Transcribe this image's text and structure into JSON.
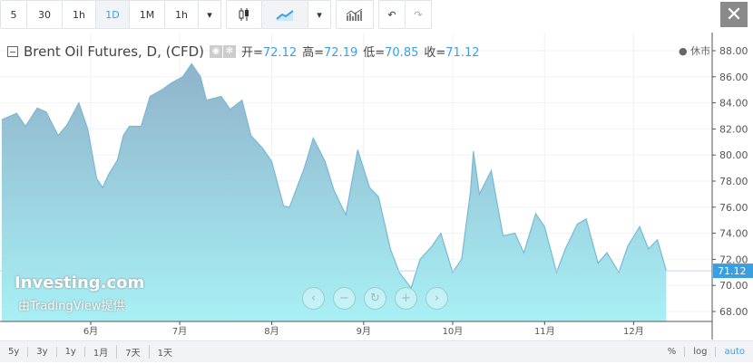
{
  "toolbar": {
    "intervals": [
      "5",
      "30",
      "1h",
      "1D",
      "1M",
      "1h"
    ],
    "selected": "1D",
    "chart_types": [
      "candlestick-icon",
      "area-chart-icon"
    ],
    "indicator_icon": "indicators-icon",
    "undo_icon": "undo-icon",
    "redo_icon": "redo-icon",
    "close_label": "✕"
  },
  "legend": {
    "title": "Brent Oil Futures, D, (CFD)",
    "open_label": "开=",
    "open": "72.12",
    "high_label": "高=",
    "high": "72.19",
    "low_label": "低=",
    "low": "70.85",
    "close_label": "收=",
    "close": "71.12",
    "status": "● 休市"
  },
  "watermark": {
    "brand": "Investing.com",
    "provider": "由TradingView提供"
  },
  "bottom": {
    "ranges": [
      "5y",
      "3y",
      "1y",
      "1月",
      "7天",
      "1天"
    ],
    "options": [
      "%",
      "log",
      "auto"
    ],
    "active_option": "auto"
  },
  "colors": {
    "accent": "#3a9fe0",
    "area_top": "#8fb3c9",
    "area_bottom": "#a8f0f5",
    "line": "#7ab8d8"
  },
  "chart_data": {
    "type": "area",
    "ylim": [
      67,
      89
    ],
    "yticks": [
      "68.00",
      "70.00",
      "72.00",
      "74.00",
      "76.00",
      "78.00",
      "80.00",
      "82.00",
      "84.00",
      "86.00",
      "88.00"
    ],
    "xticks": [
      {
        "label": "6月",
        "date": "06-01"
      },
      {
        "label": "7月",
        "date": "07-01"
      },
      {
        "label": "8月",
        "date": "08-01"
      },
      {
        "label": "9月",
        "date": "09-01"
      },
      {
        "label": "10月",
        "date": "10-01"
      },
      {
        "label": "11月",
        "date": "11-01"
      },
      {
        "label": "12月",
        "date": "12-01"
      }
    ],
    "last_price": "71.12",
    "points": [
      [
        "05-02",
        82.7
      ],
      [
        "05-07",
        83.2
      ],
      [
        "05-10",
        82.2
      ],
      [
        "05-14",
        83.6
      ],
      [
        "05-17",
        83.3
      ],
      [
        "05-21",
        81.5
      ],
      [
        "05-24",
        82.3
      ],
      [
        "05-28",
        84.0
      ],
      [
        "05-31",
        82.0
      ],
      [
        "06-03",
        78.2
      ],
      [
        "06-05",
        77.5
      ],
      [
        "06-07",
        78.5
      ],
      [
        "06-10",
        79.6
      ],
      [
        "06-12",
        81.5
      ],
      [
        "06-14",
        82.2
      ],
      [
        "06-18",
        82.2
      ],
      [
        "06-21",
        84.5
      ],
      [
        "06-25",
        85.0
      ],
      [
        "06-28",
        85.5
      ],
      [
        "07-02",
        86.0
      ],
      [
        "07-05",
        87.0
      ],
      [
        "07-08",
        86.0
      ],
      [
        "07-10",
        84.2
      ],
      [
        "07-15",
        84.5
      ],
      [
        "07-18",
        83.5
      ],
      [
        "07-22",
        84.2
      ],
      [
        "07-25",
        81.5
      ],
      [
        "07-29",
        80.5
      ],
      [
        "08-01",
        79.5
      ],
      [
        "08-05",
        76.1
      ],
      [
        "08-07",
        76.0
      ],
      [
        "08-12",
        79.0
      ],
      [
        "08-15",
        81.3
      ],
      [
        "08-19",
        79.5
      ],
      [
        "08-22",
        77.3
      ],
      [
        "08-26",
        75.4
      ],
      [
        "08-30",
        80.4
      ],
      [
        "09-03",
        77.5
      ],
      [
        "09-06",
        76.8
      ],
      [
        "09-10",
        72.8
      ],
      [
        "09-13",
        71.0
      ],
      [
        "09-17",
        69.8
      ],
      [
        "09-20",
        72.0
      ],
      [
        "09-24",
        73.0
      ],
      [
        "09-27",
        74.0
      ],
      [
        "10-01",
        71.0
      ],
      [
        "10-04",
        72.0
      ],
      [
        "10-07",
        77.2
      ],
      [
        "10-08",
        80.3
      ],
      [
        "10-10",
        77.0
      ],
      [
        "10-14",
        78.8
      ],
      [
        "10-18",
        73.8
      ],
      [
        "10-22",
        74.0
      ],
      [
        "10-25",
        72.5
      ],
      [
        "10-29",
        75.5
      ],
      [
        "11-01",
        74.5
      ],
      [
        "11-05",
        71.0
      ],
      [
        "11-08",
        72.8
      ],
      [
        "11-12",
        74.7
      ],
      [
        "11-15",
        75.1
      ],
      [
        "11-19",
        71.7
      ],
      [
        "11-22",
        72.5
      ],
      [
        "11-26",
        71.0
      ],
      [
        "11-29",
        73.0
      ],
      [
        "12-03",
        74.5
      ],
      [
        "12-06",
        72.8
      ],
      [
        "12-09",
        73.5
      ],
      [
        "12-12",
        71.12
      ]
    ]
  }
}
